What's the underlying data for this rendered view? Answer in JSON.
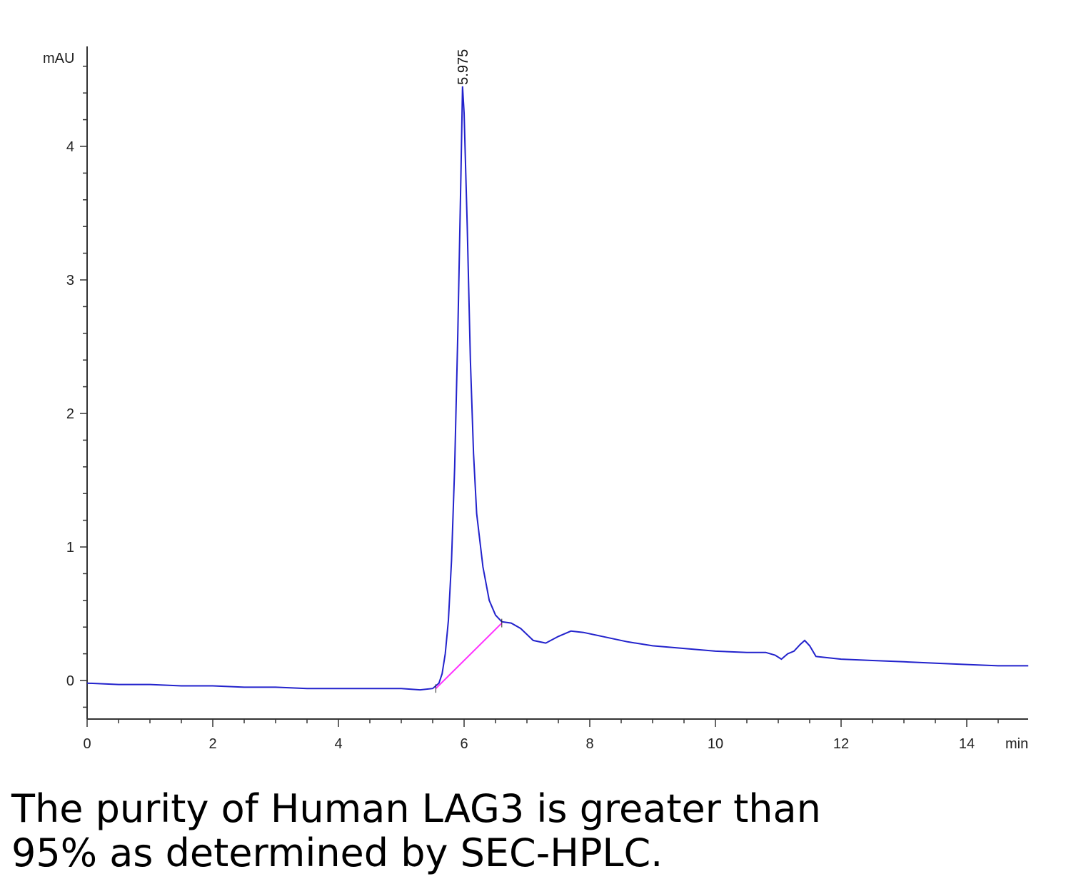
{
  "chart_data": {
    "type": "line",
    "ylabel": "mAU",
    "xlabel": "min",
    "xlim": [
      0,
      15
    ],
    "ylim": [
      -0.3,
      4.7
    ],
    "x_ticks": [
      0,
      2,
      4,
      6,
      8,
      10,
      12,
      14
    ],
    "y_ticks": [
      0,
      1,
      2,
      3,
      4
    ],
    "grid": false,
    "series": [
      {
        "color": "#2222cc",
        "x": [
          0,
          0.5,
          1,
          1.5,
          2,
          2.5,
          3,
          3.5,
          4,
          4.5,
          5,
          5.3,
          5.5,
          5.6,
          5.65,
          5.7,
          5.75,
          5.8,
          5.85,
          5.9,
          5.95,
          5.975,
          6.0,
          6.05,
          6.1,
          6.15,
          6.2,
          6.3,
          6.4,
          6.5,
          6.6,
          6.75,
          6.9,
          7.1,
          7.3,
          7.5,
          7.7,
          7.9,
          8.2,
          8.6,
          9.0,
          9.5,
          10.0,
          10.5,
          10.8,
          10.95,
          11.05,
          11.15,
          11.25,
          11.35,
          11.42,
          11.5,
          11.6,
          12.0,
          12.5,
          13.0,
          13.5,
          14.0,
          14.5,
          15.0
        ],
        "y": [
          -0.02,
          -0.03,
          -0.03,
          -0.04,
          -0.04,
          -0.05,
          -0.05,
          -0.06,
          -0.06,
          -0.06,
          -0.06,
          -0.07,
          -0.06,
          -0.02,
          0.05,
          0.2,
          0.45,
          0.9,
          1.6,
          2.6,
          3.8,
          4.45,
          4.25,
          3.4,
          2.4,
          1.7,
          1.25,
          0.85,
          0.6,
          0.49,
          0.44,
          0.43,
          0.39,
          0.3,
          0.28,
          0.33,
          0.37,
          0.36,
          0.33,
          0.29,
          0.26,
          0.24,
          0.22,
          0.21,
          0.21,
          0.19,
          0.16,
          0.2,
          0.22,
          0.27,
          0.3,
          0.26,
          0.18,
          0.16,
          0.15,
          0.14,
          0.13,
          0.12,
          0.11,
          0.11
        ]
      }
    ],
    "baseline": {
      "color": "#ff33ff",
      "x": [
        5.55,
        6.6
      ],
      "y": [
        -0.06,
        0.43
      ]
    },
    "annotations": [
      {
        "text": "5.975",
        "x": 5.975,
        "y": 4.45
      }
    ]
  },
  "caption": {
    "line1": "The purity of Human LAG3 is greater than",
    "line2": "95% as determined by SEC-HPLC."
  }
}
